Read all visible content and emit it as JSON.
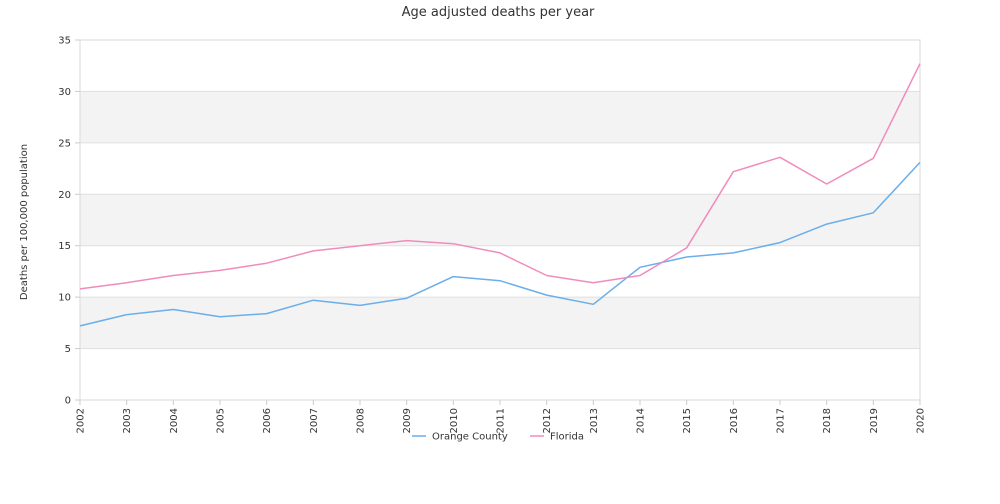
{
  "chart_data": {
    "type": "line",
    "title": "Age adjusted deaths per year",
    "xlabel": "",
    "ylabel": "Deaths per 100,000 population",
    "ylim": [
      0,
      35
    ],
    "yticks": [
      0,
      5,
      10,
      15,
      20,
      25,
      30,
      35
    ],
    "grid": true,
    "legend_position": "bottom",
    "categories": [
      "2002",
      "2003",
      "2004",
      "2005",
      "2006",
      "2007",
      "2008",
      "2009",
      "2010",
      "2011",
      "2012",
      "2013",
      "2014",
      "2015",
      "2016",
      "2017",
      "2018",
      "2019",
      "2020"
    ],
    "series": [
      {
        "name": "Orange County",
        "color": "#6aaeea",
        "values": [
          7.2,
          8.3,
          8.8,
          8.1,
          8.4,
          9.7,
          9.2,
          9.9,
          12.0,
          11.6,
          10.2,
          9.3,
          12.9,
          13.9,
          14.3,
          15.3,
          17.1,
          18.2,
          23.1
        ]
      },
      {
        "name": "Florida",
        "color": "#f08cbc",
        "values": [
          10.8,
          11.4,
          12.1,
          12.6,
          13.3,
          14.5,
          15.0,
          15.5,
          15.2,
          14.3,
          12.1,
          11.4,
          12.1,
          14.8,
          22.2,
          23.6,
          21.0,
          23.5,
          32.7
        ]
      }
    ]
  }
}
